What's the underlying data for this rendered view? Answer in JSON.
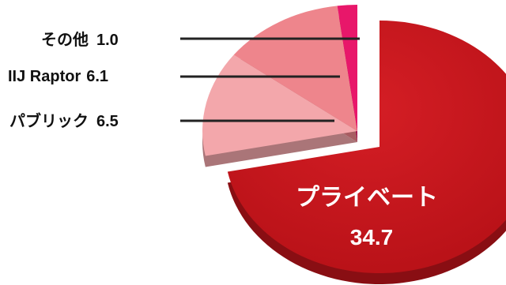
{
  "chart_data": {
    "type": "pie",
    "slices": [
      {
        "label": "プライベート",
        "value": 34.7,
        "color": "#c4141b"
      },
      {
        "label": "パブリック",
        "value": 6.5,
        "color": "#f3a7ab"
      },
      {
        "label": "IIJ Raptor",
        "value": 6.1,
        "color": "#ee858c"
      },
      {
        "label": "その他",
        "value": 1.0,
        "color": "#e8176a"
      }
    ],
    "labels": {
      "private_label": "プライベート",
      "private_value": "34.7",
      "public_label": "パブリック",
      "public_value": "6.5",
      "raptor_label": "IIJ Raptor",
      "raptor_value": "6.1",
      "other_label": "その他",
      "other_value": "1.0"
    }
  }
}
